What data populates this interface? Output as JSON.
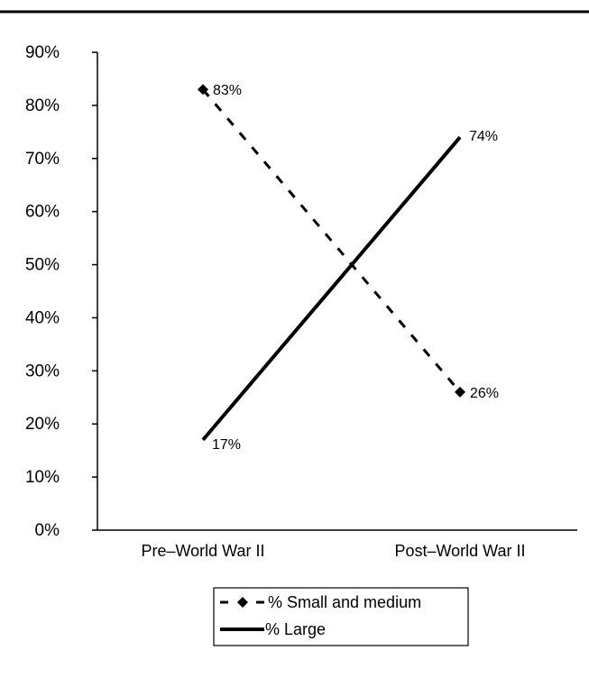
{
  "chart_data": {
    "type": "line",
    "title": "",
    "xlabel": "",
    "ylabel": "",
    "categories": [
      "Pre–World War II",
      "Post–World War II"
    ],
    "yticks": [
      "0%",
      "10%",
      "20%",
      "30%",
      "40%",
      "50%",
      "60%",
      "70%",
      "80%",
      "90%"
    ],
    "ylim": [
      0,
      90
    ],
    "grid": false,
    "legend_position": "bottom-center",
    "series": [
      {
        "name": "% Small and medium",
        "values": [
          83,
          26
        ],
        "labels": [
          "83%",
          "26%"
        ],
        "line_style": "dashed",
        "marker": "diamond",
        "color": "#000000"
      },
      {
        "name": "% Large",
        "values": [
          17,
          74
        ],
        "labels": [
          "17%",
          "74%"
        ],
        "line_style": "solid",
        "marker": "none",
        "color": "#000000"
      }
    ]
  }
}
